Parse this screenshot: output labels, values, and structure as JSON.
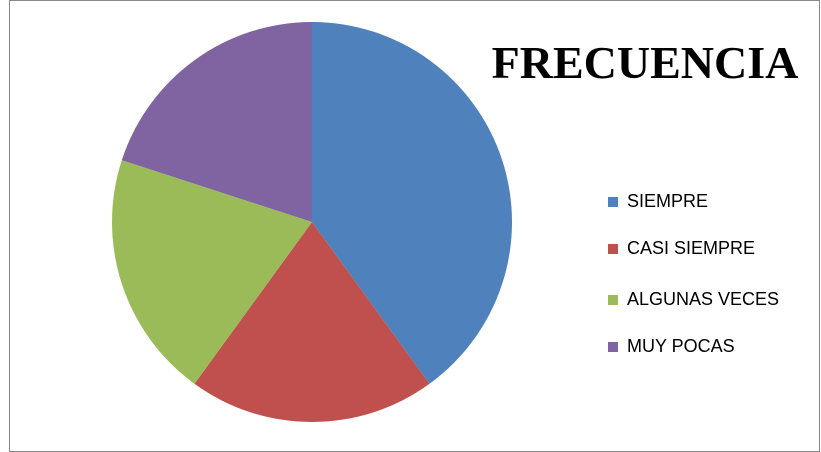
{
  "chart_data": {
    "type": "pie",
    "title": "FRECUENCIA",
    "categories": [
      "SIEMPRE",
      "CASI SIEMPRE",
      "ALGUNAS VECES",
      "MUY POCAS"
    ],
    "values": [
      40,
      20,
      20,
      20
    ],
    "colors": [
      "#4f81bd",
      "#c0504d",
      "#9bbb59",
      "#8064a2"
    ],
    "legend": "right"
  }
}
